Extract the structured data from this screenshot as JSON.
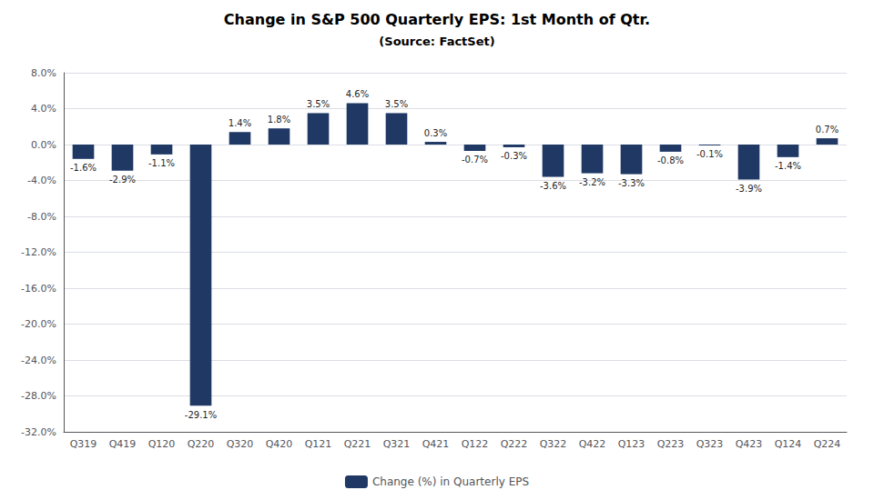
{
  "chart_data": {
    "type": "bar",
    "title": "Change in S&P 500 Quarterly EPS: 1st Month of Qtr.",
    "subtitle": "(Source: FactSet)",
    "categories": [
      "Q319",
      "Q419",
      "Q120",
      "Q220",
      "Q320",
      "Q420",
      "Q121",
      "Q221",
      "Q321",
      "Q421",
      "Q122",
      "Q222",
      "Q322",
      "Q422",
      "Q123",
      "Q223",
      "Q323",
      "Q423",
      "Q124",
      "Q224"
    ],
    "series": [
      {
        "name": "Change (%) in Quarterly EPS",
        "color": "#1f3864",
        "values": [
          -1.6,
          -2.9,
          -1.1,
          -29.1,
          1.4,
          1.8,
          3.5,
          4.6,
          3.5,
          0.3,
          -0.7,
          -0.3,
          -3.6,
          -3.2,
          -3.3,
          -0.8,
          -0.1,
          -3.9,
          -1.4,
          0.7
        ],
        "value_labels": [
          "-1.6%",
          "-2.9%",
          "-1.1%",
          "-29.1%",
          "1.4%",
          "1.8%",
          "3.5%",
          "4.6%",
          "3.5%",
          "0.3%",
          "-0.7%",
          "-0.3%",
          "-3.6%",
          "-3.2%",
          "-3.3%",
          "-0.8%",
          "-0.1%",
          "-3.9%",
          "-1.4%",
          "0.7%"
        ]
      }
    ],
    "ylim": [
      -32.0,
      8.0
    ],
    "yticks": [
      {
        "value": -32,
        "label": "-32.0%"
      },
      {
        "value": -28,
        "label": "-28.0%"
      },
      {
        "value": -24,
        "label": "-24.0%"
      },
      {
        "value": -20,
        "label": "-20.0%"
      },
      {
        "value": -16,
        "label": "-16.0%"
      },
      {
        "value": -12,
        "label": "-12.0%"
      },
      {
        "value": -8,
        "label": "-8.0%"
      },
      {
        "value": -4,
        "label": "-4.0%"
      },
      {
        "value": 0,
        "label": "0.0%"
      },
      {
        "value": 4,
        "label": "4.0%"
      },
      {
        "value": 8,
        "label": "8.0%"
      }
    ],
    "grid": true,
    "legend": "bottom",
    "data_labels": true
  }
}
